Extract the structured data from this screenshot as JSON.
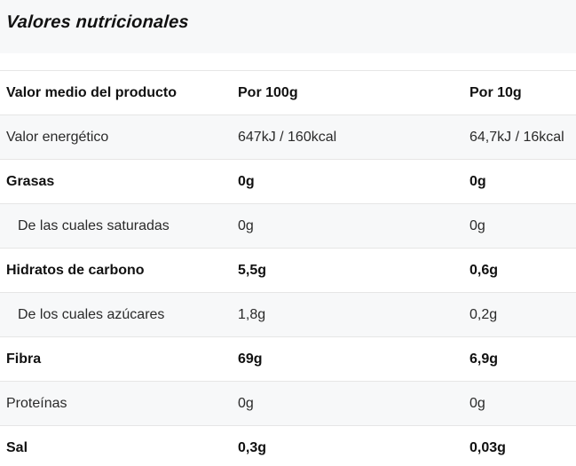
{
  "title": "Valores nutricionales",
  "header": {
    "label": "Valor medio del producto",
    "col1": "Por 100g",
    "col2": "Por 10g"
  },
  "rows": [
    {
      "label": "Valor energético",
      "v100": "647kJ / 160kcal",
      "v10": "64,7kJ / 16kcal"
    },
    {
      "label": "Grasas",
      "v100": "0g",
      "v10": "0g"
    },
    {
      "label": "De las cuales saturadas",
      "v100": "0g",
      "v10": "0g"
    },
    {
      "label": "Hidratos de carbono",
      "v100": "5,5g",
      "v10": "0,6g"
    },
    {
      "label": "De los cuales azúcares",
      "v100": "1,8g",
      "v10": "0,2g"
    },
    {
      "label": "Fibra",
      "v100": "69g",
      "v10": "6,9g"
    },
    {
      "label": "Proteínas",
      "v100": "0g",
      "v10": "0g"
    },
    {
      "label": "Sal",
      "v100": "0,3g",
      "v10": "0,03g"
    }
  ]
}
